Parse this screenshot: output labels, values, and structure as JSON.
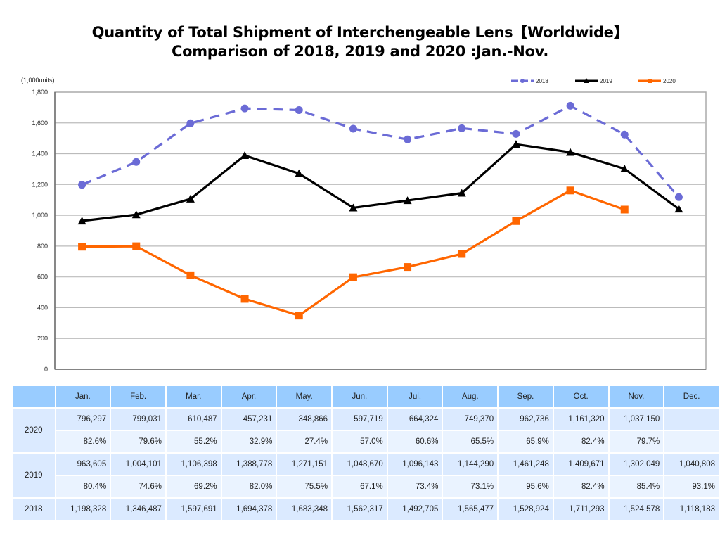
{
  "title": {
    "line1": "Quantity of Total Shipment of Interchengeable Lens【Worldwide】",
    "line2": "Comparison of 2018, 2019 and 2020 :Jan.-Nov."
  },
  "chart_data": {
    "type": "line",
    "title": "Quantity of Total Shipment of Interchengeable Lens【Worldwide】 Comparison of 2018, 2019 and 2020 :Jan.-Nov.",
    "ylabel": "(1,000units)",
    "xlabel": "",
    "ylim": [
      0,
      1800
    ],
    "yticks": [
      0,
      200,
      400,
      600,
      800,
      1000,
      1200,
      1400,
      1600,
      1800
    ],
    "ytick_labels": [
      "0",
      "200",
      "400",
      "600",
      "800",
      "1,000",
      "1,200",
      "1,400",
      "1,600",
      "1,800"
    ],
    "grid": true,
    "legend_position": "top-right",
    "categories": [
      "Jan.",
      "Feb.",
      "Mar.",
      "Apr.",
      "May.",
      "Jun.",
      "Jul.",
      "Aug.",
      "Sep.",
      "Oct.",
      "Nov.",
      "Dec."
    ],
    "series": [
      {
        "name": "2018",
        "color": "#6b6bd6",
        "style": "dashed",
        "marker": "circle",
        "values": [
          1198.328,
          1346.487,
          1597.691,
          1694.378,
          1683.348,
          1562.317,
          1492.705,
          1565.477,
          1528.924,
          1711.293,
          1524.578,
          1118.183
        ]
      },
      {
        "name": "2019",
        "color": "#000000",
        "style": "solid",
        "marker": "triangle",
        "values": [
          963.605,
          1004.101,
          1106.398,
          1388.778,
          1271.151,
          1048.67,
          1096.143,
          1144.29,
          1461.248,
          1409.671,
          1302.049,
          1040.808
        ]
      },
      {
        "name": "2020",
        "color": "#ff6600",
        "style": "solid",
        "marker": "square",
        "values": [
          796.297,
          799.031,
          610.487,
          457.231,
          348.866,
          597.719,
          664.324,
          749.37,
          962.736,
          1161.32,
          1037.15,
          null
        ]
      }
    ]
  },
  "table": {
    "header": [
      "",
      "Jan.",
      "Feb.",
      "Mar.",
      "Apr.",
      "May.",
      "Jun.",
      "Jul.",
      "Aug.",
      "Sep.",
      "Oct.",
      "Nov.",
      "Dec."
    ],
    "rows": [
      {
        "year": "2020",
        "values": [
          "796,297",
          "799,031",
          "610,487",
          "457,231",
          "348,866",
          "597,719",
          "664,324",
          "749,370",
          "962,736",
          "1,161,320",
          "1,037,150",
          ""
        ],
        "ratios": [
          "82.6%",
          "79.6%",
          "55.2%",
          "32.9%",
          "27.4%",
          "57.0%",
          "60.6%",
          "65.5%",
          "65.9%",
          "82.4%",
          "79.7%",
          ""
        ]
      },
      {
        "year": "2019",
        "values": [
          "963,605",
          "1,004,101",
          "1,106,398",
          "1,388,778",
          "1,271,151",
          "1,048,670",
          "1,096,143",
          "1,144,290",
          "1,461,248",
          "1,409,671",
          "1,302,049",
          "1,040,808"
        ],
        "ratios": [
          "80.4%",
          "74.6%",
          "69.2%",
          "82.0%",
          "75.5%",
          "67.1%",
          "73.4%",
          "73.1%",
          "95.6%",
          "82.4%",
          "85.4%",
          "93.1%"
        ]
      },
      {
        "year": "2018",
        "values": [
          "1,198,328",
          "1,346,487",
          "1,597,691",
          "1,694,378",
          "1,683,348",
          "1,562,317",
          "1,492,705",
          "1,565,477",
          "1,528,924",
          "1,711,293",
          "1,524,578",
          "1,118,183"
        ]
      }
    ]
  }
}
